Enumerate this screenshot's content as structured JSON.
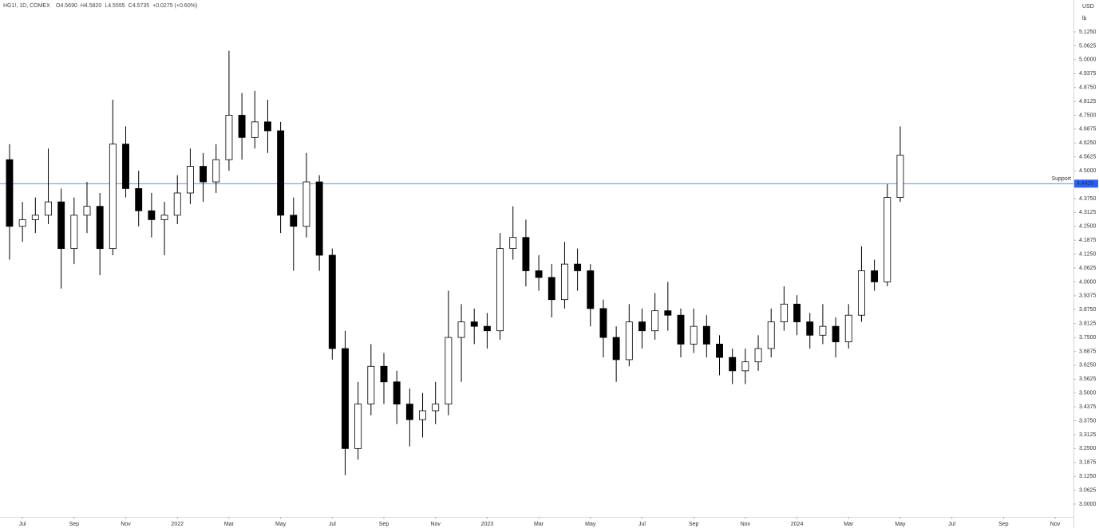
{
  "chart_data": {
    "type": "candlestick",
    "header": {
      "symbol": "HG1!, 1D, COMEX",
      "ohlc": [
        "O4.5690",
        "H4.5820",
        "L4.5555",
        "C4.5735",
        "+0.0275 (+0.60%)"
      ]
    },
    "currency": "USD",
    "unit": "lb",
    "grid": false,
    "up_color": "#ffffff",
    "down_color": "#000000",
    "outline_color": "#000000",
    "x": [
      -0.5,
      0,
      0.5,
      1,
      1.5,
      2,
      2.5,
      3,
      3.5,
      4,
      4.5,
      5,
      5.5,
      6,
      6.5,
      7,
      7.5,
      8,
      8.5,
      9,
      9.5,
      10,
      10.5,
      11,
      11.5,
      12,
      12.5,
      13,
      13.5,
      14,
      14.5,
      15,
      15.5,
      16,
      16.5,
      17,
      17.5,
      18,
      18.5,
      19,
      19.5,
      20,
      20.5,
      21,
      21.5,
      22,
      22.5,
      23,
      23.5,
      24,
      24.5,
      25,
      25.5,
      26,
      26.5,
      27,
      27.5,
      28,
      28.5,
      29,
      29.5,
      30,
      30.5,
      31,
      31.5,
      32,
      32.5,
      33,
      33.5,
      34
    ],
    "open": [
      4.55,
      4.25,
      4.28,
      4.3,
      4.36,
      4.15,
      4.3,
      4.34,
      4.15,
      4.62,
      4.42,
      4.32,
      4.28,
      4.3,
      4.4,
      4.52,
      4.45,
      4.55,
      4.75,
      4.65,
      4.72,
      4.68,
      4.3,
      4.25,
      4.45,
      4.12,
      3.7,
      3.25,
      3.45,
      3.62,
      3.55,
      3.45,
      3.38,
      3.42,
      3.45,
      3.75,
      3.82,
      3.8,
      3.78,
      4.15,
      4.2,
      4.05,
      4.02,
      3.92,
      4.08,
      4.05,
      3.88,
      3.75,
      3.65,
      3.82,
      3.78,
      3.87,
      3.85,
      3.72,
      3.8,
      3.72,
      3.66,
      3.6,
      3.64,
      3.7,
      3.82,
      3.9,
      3.82,
      3.76,
      3.8,
      3.73,
      3.85,
      4.05,
      4.0,
      4.38
    ],
    "high": [
      4.62,
      4.36,
      4.38,
      4.6,
      4.42,
      4.38,
      4.45,
      4.4,
      4.82,
      4.7,
      4.5,
      4.4,
      4.36,
      4.48,
      4.6,
      4.58,
      4.62,
      5.04,
      4.85,
      4.86,
      4.82,
      4.72,
      4.38,
      4.58,
      4.48,
      4.15,
      3.78,
      3.55,
      3.72,
      3.68,
      3.6,
      3.52,
      3.5,
      3.55,
      3.96,
      3.9,
      3.88,
      3.86,
      4.22,
      4.34,
      4.28,
      4.12,
      4.08,
      4.18,
      4.15,
      4.08,
      3.92,
      3.8,
      3.9,
      3.88,
      3.95,
      4.0,
      3.88,
      3.88,
      3.85,
      3.76,
      3.7,
      3.7,
      3.76,
      3.88,
      3.98,
      3.94,
      3.86,
      3.9,
      3.84,
      3.9,
      4.16,
      4.1,
      4.44,
      4.7
    ],
    "low": [
      4.1,
      4.18,
      4.22,
      4.26,
      3.97,
      4.08,
      4.22,
      4.03,
      4.12,
      4.38,
      4.25,
      4.2,
      4.12,
      4.26,
      4.35,
      4.36,
      4.4,
      4.5,
      4.55,
      4.6,
      4.58,
      4.22,
      4.05,
      4.2,
      4.05,
      3.65,
      3.13,
      3.2,
      3.4,
      3.45,
      3.36,
      3.26,
      3.3,
      3.36,
      3.4,
      3.55,
      3.72,
      3.7,
      3.74,
      4.1,
      3.98,
      3.96,
      3.84,
      3.88,
      3.96,
      3.8,
      3.66,
      3.55,
      3.62,
      3.7,
      3.74,
      3.78,
      3.66,
      3.68,
      3.66,
      3.58,
      3.54,
      3.54,
      3.6,
      3.66,
      3.78,
      3.76,
      3.7,
      3.72,
      3.66,
      3.7,
      3.82,
      3.96,
      3.98,
      4.36
    ],
    "close": [
      4.25,
      4.28,
      4.3,
      4.36,
      4.15,
      4.3,
      4.34,
      4.15,
      4.62,
      4.42,
      4.32,
      4.28,
      4.3,
      4.4,
      4.52,
      4.45,
      4.55,
      4.75,
      4.65,
      4.72,
      4.68,
      4.3,
      4.25,
      4.45,
      4.12,
      3.7,
      3.25,
      3.45,
      3.62,
      3.55,
      3.45,
      3.38,
      3.42,
      3.45,
      3.75,
      3.82,
      3.8,
      3.78,
      4.15,
      4.2,
      4.05,
      4.02,
      3.92,
      4.08,
      4.05,
      3.88,
      3.75,
      3.65,
      3.82,
      3.78,
      3.87,
      3.85,
      3.72,
      3.8,
      3.72,
      3.66,
      3.6,
      3.64,
      3.7,
      3.82,
      3.9,
      3.82,
      3.76,
      3.8,
      3.73,
      3.85,
      4.05,
      4.0,
      4.38,
      4.57
    ],
    "support": {
      "name": "Support",
      "value": 4.442,
      "label": "4.4420",
      "color": "#2962ff"
    },
    "xlim": [
      -0.87,
      40.71
    ],
    "xticks": [
      {
        "value": 0,
        "label": "Jul"
      },
      {
        "value": 2,
        "label": "Sep"
      },
      {
        "value": 4,
        "label": "Nov"
      },
      {
        "value": 6,
        "label": "2022"
      },
      {
        "value": 8,
        "label": "Mar"
      },
      {
        "value": 10,
        "label": "May"
      },
      {
        "value": 12,
        "label": "Jul"
      },
      {
        "value": 14,
        "label": "Sep"
      },
      {
        "value": 16,
        "label": "Nov"
      },
      {
        "value": 18,
        "label": "2023"
      },
      {
        "value": 20,
        "label": "Mar"
      },
      {
        "value": 22,
        "label": "May"
      },
      {
        "value": 24,
        "label": "Jul"
      },
      {
        "value": 26,
        "label": "Sep"
      },
      {
        "value": 28,
        "label": "Nov"
      },
      {
        "value": 30,
        "label": "2024"
      },
      {
        "value": 32,
        "label": "Mar"
      },
      {
        "value": 34,
        "label": "May"
      },
      {
        "value": 36,
        "label": "Jul"
      },
      {
        "value": 38,
        "label": "Sep"
      },
      {
        "value": 40,
        "label": "Nov"
      }
    ],
    "ylim": [
      2.9426,
      5.2686
    ],
    "yticks": [
      {
        "value": 3,
        "label": "3.0000"
      },
      {
        "value": 3.0625,
        "label": "3.0625"
      },
      {
        "value": 3.125,
        "label": "3.1250"
      },
      {
        "value": 3.1875,
        "label": "3.1875"
      },
      {
        "value": 3.25,
        "label": "3.2500"
      },
      {
        "value": 3.3125,
        "label": "3.3125"
      },
      {
        "value": 3.375,
        "label": "3.3750"
      },
      {
        "value": 3.4375,
        "label": "3.4375"
      },
      {
        "value": 3.5,
        "label": "3.5000"
      },
      {
        "value": 3.5625,
        "label": "3.5625"
      },
      {
        "value": 3.625,
        "label": "3.6250"
      },
      {
        "value": 3.6875,
        "label": "3.6875"
      },
      {
        "value": 3.75,
        "label": "3.7500"
      },
      {
        "value": 3.8125,
        "label": "3.8125"
      },
      {
        "value": 3.875,
        "label": "3.8750"
      },
      {
        "value": 3.9375,
        "label": "3.9375"
      },
      {
        "value": 4,
        "label": "4.0000"
      },
      {
        "value": 4.0625,
        "label": "4.0625"
      },
      {
        "value": 4.125,
        "label": "4.1250"
      },
      {
        "value": 4.1875,
        "label": "4.1875"
      },
      {
        "value": 4.25,
        "label": "4.2500"
      },
      {
        "value": 4.3125,
        "label": "4.3125"
      },
      {
        "value": 4.375,
        "label": "4.3750"
      },
      {
        "value": 4.5,
        "label": "4.5000"
      },
      {
        "value": 4.5625,
        "label": "4.5625"
      },
      {
        "value": 4.625,
        "label": "4.6250"
      },
      {
        "value": 4.6875,
        "label": "4.6875"
      },
      {
        "value": 4.75,
        "label": "4.7500"
      },
      {
        "value": 4.8125,
        "label": "4.8125"
      },
      {
        "value": 4.875,
        "label": "4.8750"
      },
      {
        "value": 4.9375,
        "label": "4.9375"
      },
      {
        "value": 5,
        "label": "5.0000"
      },
      {
        "value": 5.0625,
        "label": "5.0625"
      },
      {
        "value": 5.125,
        "label": "5.1250"
      }
    ]
  }
}
